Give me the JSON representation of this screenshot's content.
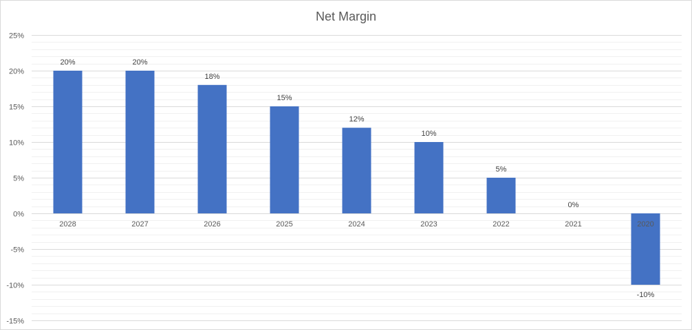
{
  "chart_data": {
    "type": "bar",
    "title": "Net Margin",
    "xlabel": "",
    "ylabel": "",
    "categories": [
      "2028",
      "2027",
      "2026",
      "2025",
      "2024",
      "2023",
      "2022",
      "2021",
      "2020"
    ],
    "series": [
      {
        "values": [
          20,
          20,
          18,
          15,
          12,
          10,
          5,
          0,
          -10
        ],
        "color": "#4472C4"
      }
    ],
    "data_labels": [
      "20%",
      "20%",
      "18%",
      "15%",
      "12%",
      "10%",
      "5%",
      "0%",
      "-10%"
    ],
    "y_ticks": [
      25,
      20,
      15,
      10,
      5,
      0,
      -5,
      -10,
      -15
    ],
    "y_tick_labels": [
      "25%",
      "20%",
      "15%",
      "10%",
      "5%",
      "0%",
      "-5%",
      "-10%",
      "-15%"
    ],
    "ylim": [
      -15,
      25
    ],
    "y_minor_step": 1,
    "grid": true,
    "legend": "none",
    "colors": {
      "bar": "#4472C4",
      "major_grid": "#d9d9d9",
      "minor_grid": "#f0f0f0",
      "text": "#595959"
    }
  }
}
